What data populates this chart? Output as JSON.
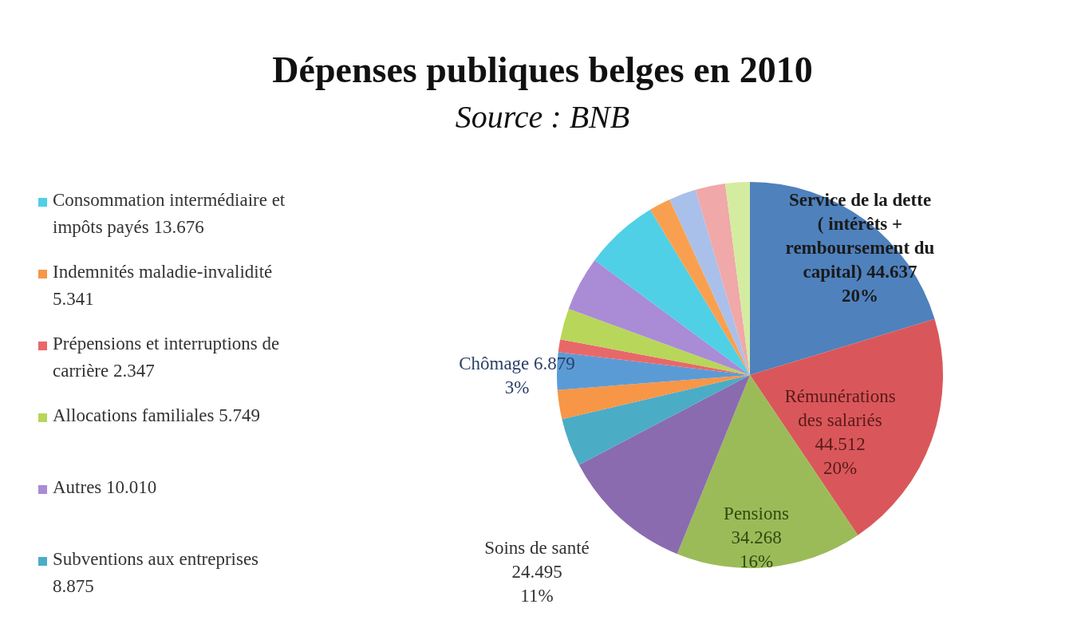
{
  "chart_data": {
    "type": "pie",
    "title": "Dépenses publiques belges en 2010",
    "subtitle": "Source : BNB",
    "categories": [
      "Service de la dette ( intérêts + remboursement du capital)",
      "Rémunérations des salariés",
      "Pensions",
      "Soins de santé",
      "Subventions aux entreprises",
      "Indemnités maladie-invalidité",
      "Chômage",
      "Prépensions et interruptions de carrière",
      "Allocations familiales",
      "Autres",
      "Consommation intermédiaire et impôts payés",
      null,
      null,
      null,
      null
    ],
    "values": [
      44.637,
      44.512,
      34.268,
      24.495,
      8.875,
      5.341,
      6.879,
      2.347,
      5.749,
      10.01,
      13.676,
      4,
      5,
      5.5,
      4.5
    ],
    "value_labels": [
      "44.637\n20%",
      "44.512\n20%",
      "34.268\n16%",
      "24.495\n11%",
      "8.875",
      "5.341",
      "6.879\n3%",
      "2.347",
      "5.749",
      "10.010",
      "13.676",
      null,
      null,
      null,
      null
    ],
    "colors": [
      "#4f81bd",
      "#d9575a",
      "#9bbb59",
      "#8a6bb0",
      "#4bacc6",
      "#f79646",
      "#5b9bd5",
      "#e8686a",
      "#b8d65a",
      "#a98bd6",
      "#4fd0e6",
      "#f9a050",
      "#a9c0ea",
      "#f0a8a8",
      "#d4eca0"
    ],
    "legend": "left"
  }
}
